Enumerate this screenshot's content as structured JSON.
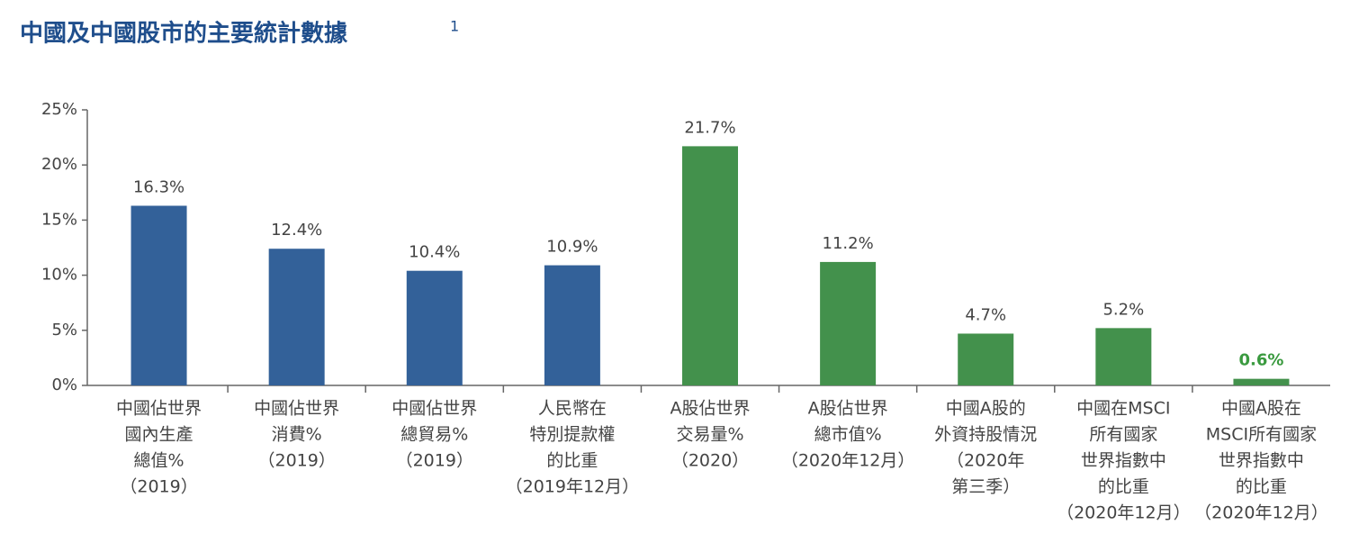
{
  "chart_data": {
    "type": "bar",
    "title": "中國及中國股市的主要統計數據",
    "title_note": "1",
    "categories": [
      [
        "中國佔世界",
        "國內生產",
        "總值%",
        "（2019）"
      ],
      [
        "中國佔世界",
        "消費%",
        "（2019）"
      ],
      [
        "中國佔世界",
        "總貿易%",
        "（2019）"
      ],
      [
        "人民幣在",
        "特別提款權",
        "的比重",
        "（2019年12月）"
      ],
      [
        "A股佔世界",
        "交易量%",
        "（2020）"
      ],
      [
        "A股佔世界",
        "總市值%",
        "（2020年12月）"
      ],
      [
        "中國A股的",
        "外資持股情況",
        "（2020年",
        "第三季）"
      ],
      [
        "中國在MSCI",
        "所有國家",
        "世界指數中",
        "的比重",
        "（2020年12月）"
      ],
      [
        "中國A股在",
        "MSCI所有國家",
        "世界指數中",
        "的比重",
        "（2020年12月）"
      ]
    ],
    "values": [
      16.3,
      12.4,
      10.4,
      10.9,
      21.7,
      11.2,
      4.7,
      5.2,
      0.6
    ],
    "value_labels": [
      "16.3%",
      "12.4%",
      "10.4%",
      "10.9%",
      "21.7%",
      "11.2%",
      "4.7%",
      "5.2%",
      "0.6%"
    ],
    "colors": [
      "#336199",
      "#336199",
      "#336199",
      "#336199",
      "#43914c",
      "#43914c",
      "#43914c",
      "#43914c",
      "#43914c"
    ],
    "label_colors": [
      "#444444",
      "#444444",
      "#444444",
      "#444444",
      "#444444",
      "#444444",
      "#444444",
      "#444444",
      "#3a9a3f"
    ],
    "ylim": [
      0,
      25
    ],
    "yticks": [
      {
        "value": 0,
        "label": "0%"
      },
      {
        "value": 5,
        "label": "5%"
      },
      {
        "value": 10,
        "label": "10%"
      },
      {
        "value": 15,
        "label": "15%"
      },
      {
        "value": 20,
        "label": "20%"
      },
      {
        "value": 25,
        "label": "25%"
      }
    ]
  }
}
